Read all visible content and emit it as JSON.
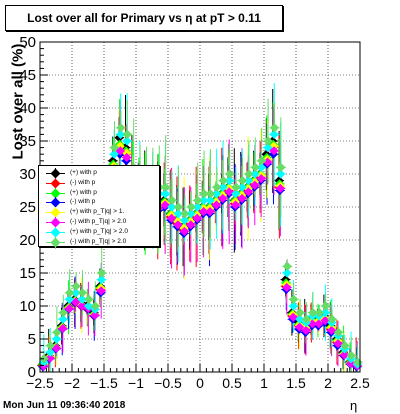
{
  "title": "Lost over all for Primary vs   η at pT > 0.11",
  "timestamp": "Mon Jun 11 09:36:40 2018",
  "colors": {
    "black": "#000000",
    "red": "#ff0000",
    "green": "#00ff00",
    "blue": "#0000ff",
    "yellow": "#ffff00",
    "magenta": "#ff00ff",
    "cyan": "#00ffff",
    "lightgreen": "#66dd66"
  },
  "chart_data": {
    "type": "scatter",
    "title": "Lost over all for Primary vs   η at pT > 0.11",
    "xlabel": "η",
    "ylabel": "Lost over all (%)",
    "xlim": [
      -2.5,
      2.5
    ],
    "ylim": [
      0,
      50
    ],
    "x_ticks": [
      "−2.5",
      "−2",
      "−1.5",
      "−1",
      "−0.5",
      "0",
      "0.5",
      "1",
      "1.5",
      "2",
      "2.5"
    ],
    "y_ticks": [
      "0",
      "5",
      "10",
      "15",
      "20",
      "25",
      "30",
      "35",
      "40",
      "45",
      "50"
    ],
    "grid": true,
    "legend_position": "left",
    "x": [
      -2.45,
      -2.35,
      -2.25,
      -2.15,
      -2.05,
      -1.95,
      -1.85,
      -1.75,
      -1.65,
      -1.55,
      -1.45,
      -1.35,
      -1.25,
      -1.15,
      -1.05,
      -0.95,
      -0.85,
      -0.75,
      -0.65,
      -0.55,
      -0.45,
      -0.35,
      -0.25,
      -0.15,
      -0.05,
      0.05,
      0.15,
      0.25,
      0.35,
      0.45,
      0.55,
      0.65,
      0.75,
      0.85,
      0.95,
      1.05,
      1.15,
      1.25,
      1.35,
      1.45,
      1.55,
      1.65,
      1.75,
      1.85,
      1.95,
      2.05,
      2.15,
      2.25,
      2.35,
      2.45
    ],
    "series": [
      {
        "name": "(+) with p",
        "color": "#000000",
        "values": [
          1,
          2.5,
          4,
          7,
          10,
          11,
          10.5,
          10,
          9,
          13,
          24,
          32,
          35.5,
          34,
          29,
          27,
          26,
          25,
          26,
          26,
          24,
          23,
          22,
          23,
          24,
          25,
          25,
          26,
          27,
          28,
          26,
          27,
          28,
          29,
          30,
          33,
          35,
          29,
          14,
          9,
          7.5,
          7,
          8,
          8,
          8.5,
          7,
          5,
          3,
          1.5,
          1
        ]
      },
      {
        "name": "(-) with p",
        "color": "#ff0000",
        "values": [
          1,
          2,
          3.5,
          6.5,
          9.5,
          10.5,
          10,
          9.5,
          8.5,
          12.5,
          23,
          31,
          34,
          33,
          28,
          26,
          25,
          24.5,
          25,
          25.5,
          23.5,
          22.5,
          21.5,
          22.5,
          23.5,
          24.5,
          24.5,
          25.5,
          26.5,
          27.5,
          25.5,
          26.5,
          27.5,
          28.5,
          29.5,
          32,
          34,
          28,
          13,
          8.5,
          7,
          6.5,
          7.5,
          7.5,
          8,
          6.5,
          4.5,
          2.5,
          1.5,
          1
        ]
      },
      {
        "name": "(+) with p",
        "color": "#00ff00",
        "values": [
          1.2,
          2.2,
          3.8,
          6.8,
          9.8,
          10.8,
          10.2,
          9.8,
          8.8,
          12.8,
          23.5,
          31.5,
          34.5,
          33.5,
          28.5,
          26.5,
          25.5,
          25,
          25.5,
          25.8,
          24,
          23,
          22,
          23,
          24,
          25,
          25,
          26,
          27,
          28,
          26,
          27,
          28,
          29,
          30,
          32.5,
          34.5,
          28.5,
          13.5,
          8.8,
          7.2,
          6.8,
          7.8,
          7.8,
          8.2,
          6.8,
          4.8,
          2.8,
          1.4,
          1
        ]
      },
      {
        "name": "(-) with p",
        "color": "#0000ff",
        "values": [
          0.8,
          2,
          3.5,
          6.5,
          9.5,
          10.5,
          10,
          9.5,
          8.5,
          12,
          22.5,
          30.5,
          33,
          32,
          27.5,
          25.5,
          24.5,
          24,
          24.5,
          25,
          23,
          22,
          21,
          22,
          23,
          24,
          24,
          25,
          26,
          27,
          25,
          26,
          27,
          28,
          29,
          31.5,
          33,
          27.5,
          12.5,
          8,
          6.5,
          6,
          7,
          7,
          7.5,
          6,
          4,
          2.5,
          1.2,
          0.8
        ]
      },
      {
        "name": "(+) with p_T|q| > 1.",
        "color": "#ffff00",
        "values": [
          1,
          2.3,
          3.7,
          6.7,
          9.7,
          10.7,
          10.1,
          9.7,
          8.7,
          12.7,
          23.2,
          31.2,
          34.2,
          33.2,
          28.2,
          26.2,
          25.2,
          24.8,
          25.2,
          25.6,
          23.8,
          22.8,
          21.8,
          22.8,
          23.8,
          24.8,
          24.8,
          25.8,
          26.8,
          27.8,
          25.8,
          26.8,
          27.8,
          28.8,
          29.8,
          32.2,
          34.2,
          28.2,
          13.2,
          8.7,
          7.1,
          6.7,
          7.7,
          7.7,
          8.1,
          6.7,
          4.7,
          2.7,
          1.3,
          1
        ]
      },
      {
        "name": "(-) with p_T|q| > 2.0",
        "color": "#ff00ff",
        "values": [
          0.9,
          2.1,
          3.6,
          6.6,
          9.6,
          10.6,
          10,
          9.6,
          8.6,
          12.3,
          22.8,
          30.8,
          33.5,
          32.5,
          27.8,
          25.8,
          24.8,
          24.3,
          24.8,
          25.3,
          23.3,
          22.3,
          21.3,
          22.3,
          23.3,
          24.3,
          24.3,
          25.3,
          26.3,
          27.3,
          25.3,
          26.3,
          27.3,
          28.3,
          29.3,
          31.8,
          33.5,
          27.8,
          12.8,
          8.3,
          6.8,
          6.3,
          7.3,
          7.3,
          7.8,
          6.3,
          4.3,
          2.6,
          1.3,
          0.9
        ]
      },
      {
        "name": "(+) with p_T|q| > 2.0",
        "color": "#00ffff",
        "values": [
          1.5,
          3,
          5,
          8,
          11,
          12,
          11,
          10,
          9.5,
          14,
          25,
          33,
          36,
          35,
          30,
          28,
          27,
          26,
          27,
          27,
          25,
          24,
          23,
          24,
          25,
          26,
          26,
          27,
          28,
          29,
          27,
          28,
          29,
          30,
          31,
          34,
          36,
          30,
          15,
          10,
          8,
          7.5,
          8.5,
          8.5,
          9,
          7.5,
          5.5,
          3.5,
          2,
          1.2
        ]
      },
      {
        "name": "(-) with p_T|q| > 2.0",
        "color": "#66dd66",
        "values": [
          2,
          4,
          6,
          9,
          12,
          13,
          12,
          11,
          10,
          15,
          26,
          34,
          37,
          36,
          31,
          29,
          28,
          27,
          28,
          28,
          26,
          25,
          24,
          25,
          26,
          27,
          27,
          28,
          29,
          30,
          28,
          29,
          30,
          31,
          32,
          35,
          37,
          31,
          16,
          11,
          9,
          8,
          9,
          9,
          10,
          8,
          6,
          4,
          2.5,
          1.5
        ]
      }
    ]
  }
}
